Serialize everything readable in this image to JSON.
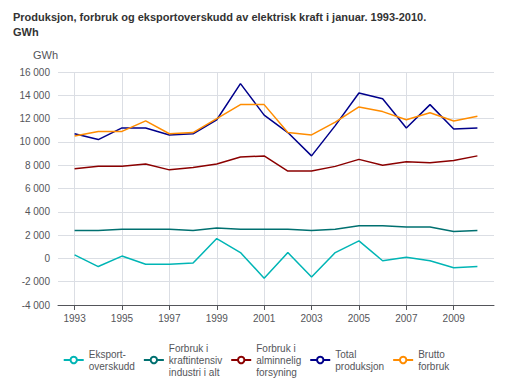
{
  "chart_data": {
    "type": "line",
    "title": "Produksjon, forbruk og eksportoverskudd av elektrisk kraft i januar. 1993-2010.",
    "subtitle": "GWh",
    "y_label": "GWh",
    "x": [
      1993,
      1994,
      1995,
      1996,
      1997,
      1998,
      1999,
      2000,
      2001,
      2002,
      2003,
      2004,
      2005,
      2006,
      2007,
      2008,
      2009,
      2010
    ],
    "series": [
      {
        "name": "Eksport-\noverskudd",
        "color": "#00b5b5",
        "values": [
          300,
          -700,
          200,
          -500,
          -500,
          -400,
          1700,
          500,
          -1700,
          500,
          -1600,
          500,
          1500,
          -200,
          100,
          -200,
          -800,
          -700
        ]
      },
      {
        "name": "Forbruk i\nkraftintensiv\nindustri i alt",
        "color": "#007070",
        "values": [
          2400,
          2400,
          2500,
          2500,
          2500,
          2400,
          2600,
          2500,
          2500,
          2500,
          2400,
          2500,
          2800,
          2800,
          2700,
          2700,
          2300,
          2400
        ]
      },
      {
        "name": "Forbruk i\nalminnelig\nforsyning",
        "color": "#8b0000",
        "values": [
          7700,
          7900,
          7900,
          8100,
          7600,
          7800,
          8100,
          8700,
          8800,
          7500,
          7500,
          7900,
          8500,
          8000,
          8300,
          8200,
          8400,
          8800
        ]
      },
      {
        "name": "Total\nproduksjon",
        "color": "#00008b",
        "values": [
          10700,
          10200,
          11200,
          11200,
          10600,
          10700,
          11900,
          15000,
          12300,
          10800,
          8800,
          11400,
          14200,
          13700,
          11200,
          13200,
          11100,
          11200
        ]
      },
      {
        "name": "Brutto\nforbruk",
        "color": "#ff8c00",
        "values": [
          10500,
          10900,
          10900,
          11800,
          10700,
          10800,
          12000,
          13200,
          13200,
          10800,
          10600,
          11700,
          13000,
          12600,
          11900,
          12500,
          11800,
          12200
        ]
      }
    ],
    "xlim": [
      1992.3,
      2010.7
    ],
    "xticks": [
      1993,
      1995,
      1997,
      1999,
      2001,
      2003,
      2005,
      2007,
      2009
    ],
    "ylim": [
      -4000,
      16000
    ],
    "yticks": [
      {
        "value": -4000,
        "label": "-4 000"
      },
      {
        "value": -2000,
        "label": "-2 000"
      },
      0,
      {
        "value": 2000,
        "label": "2 000"
      },
      {
        "value": 4000,
        "label": "4 000"
      },
      {
        "value": 6000,
        "label": "6 000"
      },
      {
        "value": 8000,
        "label": "8 000"
      },
      {
        "value": 10000,
        "label": "10 000"
      },
      {
        "value": 12000,
        "label": "12 000"
      },
      {
        "value": 14000,
        "label": "14 000"
      },
      {
        "value": 16000,
        "label": "16 000"
      }
    ],
    "grid": true,
    "legend": "bottom"
  }
}
